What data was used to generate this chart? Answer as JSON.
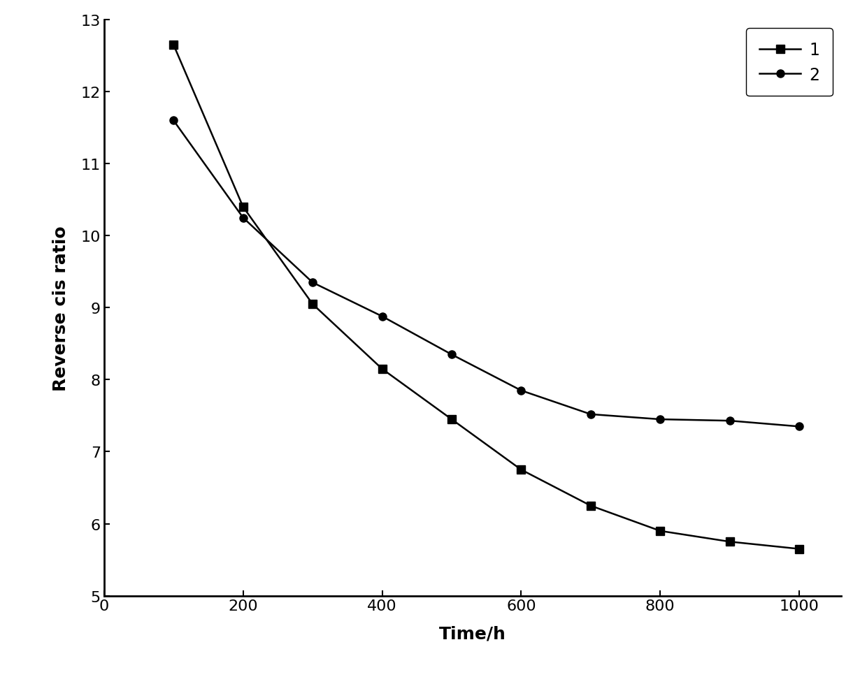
{
  "series1": {
    "label": "1",
    "x": [
      100,
      200,
      300,
      400,
      500,
      600,
      700,
      800,
      900,
      1000
    ],
    "y": [
      12.65,
      10.4,
      9.05,
      8.15,
      7.45,
      6.75,
      6.25,
      5.9,
      5.75,
      5.65
    ],
    "marker": "s",
    "color": "#000000",
    "markersize": 8
  },
  "series2": {
    "label": "2",
    "x": [
      100,
      200,
      300,
      400,
      500,
      600,
      700,
      800,
      900,
      1000
    ],
    "y": [
      11.6,
      10.25,
      9.35,
      8.88,
      8.35,
      7.85,
      7.52,
      7.45,
      7.43,
      7.35
    ],
    "marker": "o",
    "color": "#000000",
    "markersize": 8
  },
  "xlabel": "Time/h",
  "ylabel": "Reverse cis ratio",
  "xlim": [
    0,
    1060
  ],
  "ylim": [
    5,
    13
  ],
  "xticks": [
    0,
    200,
    400,
    600,
    800,
    1000
  ],
  "yticks": [
    5,
    6,
    7,
    8,
    9,
    10,
    11,
    12,
    13
  ],
  "background_color": "#ffffff",
  "linewidth": 1.8,
  "legend_loc": "upper right",
  "axis_fontsize": 18,
  "tick_fontsize": 16,
  "legend_fontsize": 17
}
